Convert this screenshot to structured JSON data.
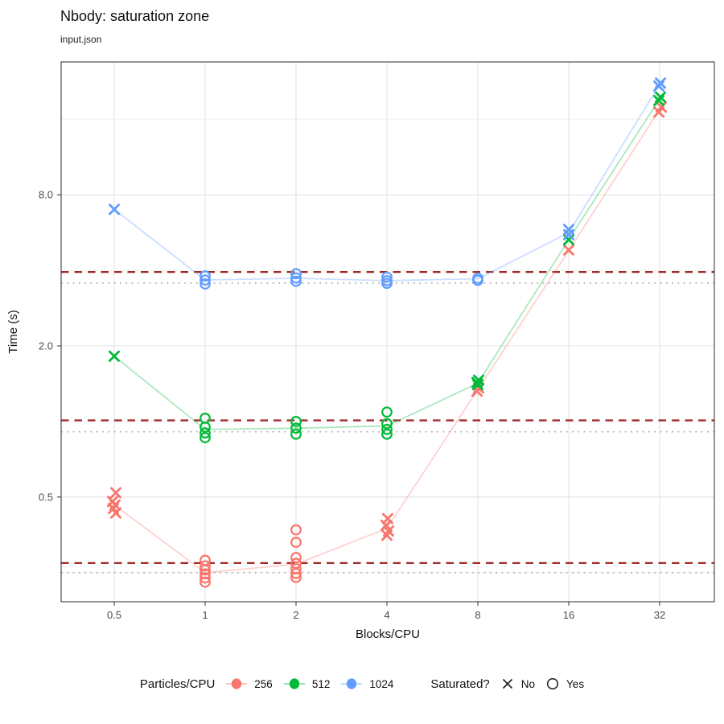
{
  "title": "Nbody: saturation zone",
  "subtitle": "input.json",
  "x_axis": {
    "label": "Blocks/CPU",
    "scale": "log2",
    "tick_labels": [
      "0.5",
      "1",
      "2",
      "4",
      "8",
      "16",
      "32"
    ],
    "tick_values": [
      0.5,
      1,
      2,
      4,
      8,
      16,
      32
    ]
  },
  "y_axis": {
    "label": "Time (s)",
    "scale": "log10",
    "tick_labels": [
      "0.5",
      "2.0",
      "8.0"
    ],
    "tick_values": [
      0.5,
      2.0,
      8.0
    ],
    "minor_values": [
      0.25,
      1.0,
      4.0,
      16.0
    ]
  },
  "legend": {
    "color_title": "Particles/CPU",
    "color_items": [
      {
        "label": "256",
        "color": "#F8766D"
      },
      {
        "label": "512",
        "color": "#00BA38"
      },
      {
        "label": "1024",
        "color": "#619CFF"
      }
    ],
    "shape_title": "Saturated?",
    "shape_items": [
      {
        "label": "No",
        "glyph": "x"
      },
      {
        "label": "Yes",
        "glyph": "circle"
      }
    ]
  },
  "ref_lines": {
    "dashed_color": "#A02C2C",
    "dotted_color": "#ADADAD",
    "groups": [
      {
        "name": "1024",
        "dashed_y": 3.94,
        "dotted_y": 3.56
      },
      {
        "name": "512",
        "dashed_y": 1.01,
        "dotted_y": 0.91
      },
      {
        "name": "256",
        "dashed_y": 0.273,
        "dotted_y": 0.25
      }
    ]
  },
  "chart_data": {
    "type": "scatter",
    "title": "Nbody: saturation zone",
    "subtitle": "input.json",
    "xlabel": "Blocks/CPU",
    "ylabel": "Time (s)",
    "x_scale": "log2",
    "y_scale": "log10",
    "x_domain": [
      0.33,
      48.6
    ],
    "y_domain": [
      0.19,
      27.0
    ],
    "shape_meaning": {
      "x": "not saturated",
      "circle": "saturated"
    },
    "series": [
      {
        "name": "256",
        "color": "#F8766D",
        "trend": [
          [
            0.5,
            0.465
          ],
          [
            1,
            0.25
          ],
          [
            2,
            0.27
          ],
          [
            4,
            0.375
          ],
          [
            8,
            1.34
          ],
          [
            16,
            4.8
          ],
          [
            32,
            17.5
          ]
        ],
        "points": [
          {
            "x": 0.5,
            "y": 0.52,
            "sat": false,
            "dx": 2
          },
          {
            "x": 0.5,
            "y": 0.48,
            "sat": false,
            "dx": -2
          },
          {
            "x": 0.5,
            "y": 0.465,
            "sat": false,
            "dx": 1
          },
          {
            "x": 0.5,
            "y": 0.45,
            "sat": false,
            "dx": -1
          },
          {
            "x": 0.5,
            "y": 0.432,
            "sat": false,
            "dx": 2
          },
          {
            "x": 1,
            "y": 0.28,
            "sat": true
          },
          {
            "x": 1,
            "y": 0.266,
            "sat": true
          },
          {
            "x": 1,
            "y": 0.256,
            "sat": true
          },
          {
            "x": 1,
            "y": 0.247,
            "sat": true
          },
          {
            "x": 1,
            "y": 0.238,
            "sat": true
          },
          {
            "x": 1,
            "y": 0.229,
            "sat": true
          },
          {
            "x": 2,
            "y": 0.37,
            "sat": true
          },
          {
            "x": 2,
            "y": 0.33,
            "sat": true
          },
          {
            "x": 2,
            "y": 0.287,
            "sat": true
          },
          {
            "x": 2,
            "y": 0.272,
            "sat": true
          },
          {
            "x": 2,
            "y": 0.259,
            "sat": true
          },
          {
            "x": 2,
            "y": 0.248,
            "sat": true
          },
          {
            "x": 2,
            "y": 0.239,
            "sat": true
          },
          {
            "x": 4,
            "y": 0.41,
            "sat": false,
            "dx": 1
          },
          {
            "x": 4,
            "y": 0.386,
            "sat": false,
            "dx": -1
          },
          {
            "x": 4,
            "y": 0.366,
            "sat": false,
            "dx": 2
          },
          {
            "x": 4,
            "y": 0.352,
            "sat": false
          },
          {
            "x": 8,
            "y": 1.36,
            "sat": false,
            "dx": 1
          },
          {
            "x": 8,
            "y": 1.32,
            "sat": false,
            "dx": -1
          },
          {
            "x": 16,
            "y": 4.82,
            "sat": false
          },
          {
            "x": 32,
            "y": 17.9,
            "sat": false,
            "dx": 2
          },
          {
            "x": 32,
            "y": 17.1,
            "sat": false,
            "dx": -1
          }
        ]
      },
      {
        "name": "512",
        "color": "#00BA38",
        "trend": [
          [
            0.5,
            1.82
          ],
          [
            1,
            0.93
          ],
          [
            2,
            0.94
          ],
          [
            4,
            0.96
          ],
          [
            8,
            1.42
          ],
          [
            16,
            5.3
          ],
          [
            32,
            19.3
          ]
        ],
        "points": [
          {
            "x": 0.5,
            "y": 1.82,
            "sat": false
          },
          {
            "x": 1,
            "y": 1.03,
            "sat": true
          },
          {
            "x": 1,
            "y": 0.95,
            "sat": true
          },
          {
            "x": 1,
            "y": 0.9,
            "sat": true
          },
          {
            "x": 1,
            "y": 0.862,
            "sat": true
          },
          {
            "x": 2,
            "y": 1.0,
            "sat": true
          },
          {
            "x": 2,
            "y": 0.94,
            "sat": true
          },
          {
            "x": 2,
            "y": 0.89,
            "sat": true
          },
          {
            "x": 4,
            "y": 1.09,
            "sat": true
          },
          {
            "x": 4,
            "y": 0.98,
            "sat": true
          },
          {
            "x": 4,
            "y": 0.93,
            "sat": true
          },
          {
            "x": 4,
            "y": 0.89,
            "sat": true
          },
          {
            "x": 8,
            "y": 1.46,
            "sat": false,
            "dx": 1
          },
          {
            "x": 8,
            "y": 1.43,
            "sat": false,
            "dx": -1
          },
          {
            "x": 8,
            "y": 1.4,
            "sat": false
          },
          {
            "x": 16,
            "y": 5.3,
            "sat": false
          },
          {
            "x": 32,
            "y": 19.6,
            "sat": false,
            "dx": 1
          },
          {
            "x": 32,
            "y": 19.0,
            "sat": false,
            "dx": -1
          }
        ]
      },
      {
        "name": "1024",
        "color": "#619CFF",
        "trend": [
          [
            0.5,
            7.0
          ],
          [
            1,
            3.66
          ],
          [
            2,
            3.72
          ],
          [
            4,
            3.64
          ],
          [
            8,
            3.7
          ],
          [
            16,
            5.65
          ],
          [
            32,
            22.0
          ]
        ],
        "points": [
          {
            "x": 0.5,
            "y": 7.0,
            "sat": false
          },
          {
            "x": 1,
            "y": 3.8,
            "sat": true
          },
          {
            "x": 1,
            "y": 3.66,
            "sat": true
          },
          {
            "x": 1,
            "y": 3.53,
            "sat": true
          },
          {
            "x": 2,
            "y": 3.88,
            "sat": true
          },
          {
            "x": 2,
            "y": 3.73,
            "sat": true
          },
          {
            "x": 2,
            "y": 3.62,
            "sat": true
          },
          {
            "x": 4,
            "y": 3.76,
            "sat": true
          },
          {
            "x": 4,
            "y": 3.64,
            "sat": true
          },
          {
            "x": 4,
            "y": 3.55,
            "sat": true
          },
          {
            "x": 8,
            "y": 3.72,
            "sat": true
          },
          {
            "x": 8,
            "y": 3.65,
            "sat": true
          },
          {
            "x": 16,
            "y": 5.82,
            "sat": false
          },
          {
            "x": 16,
            "y": 5.55,
            "sat": false
          },
          {
            "x": 32,
            "y": 22.3,
            "sat": false,
            "dx": 1
          },
          {
            "x": 32,
            "y": 21.7,
            "sat": false,
            "dx": -1
          }
        ]
      }
    ]
  }
}
